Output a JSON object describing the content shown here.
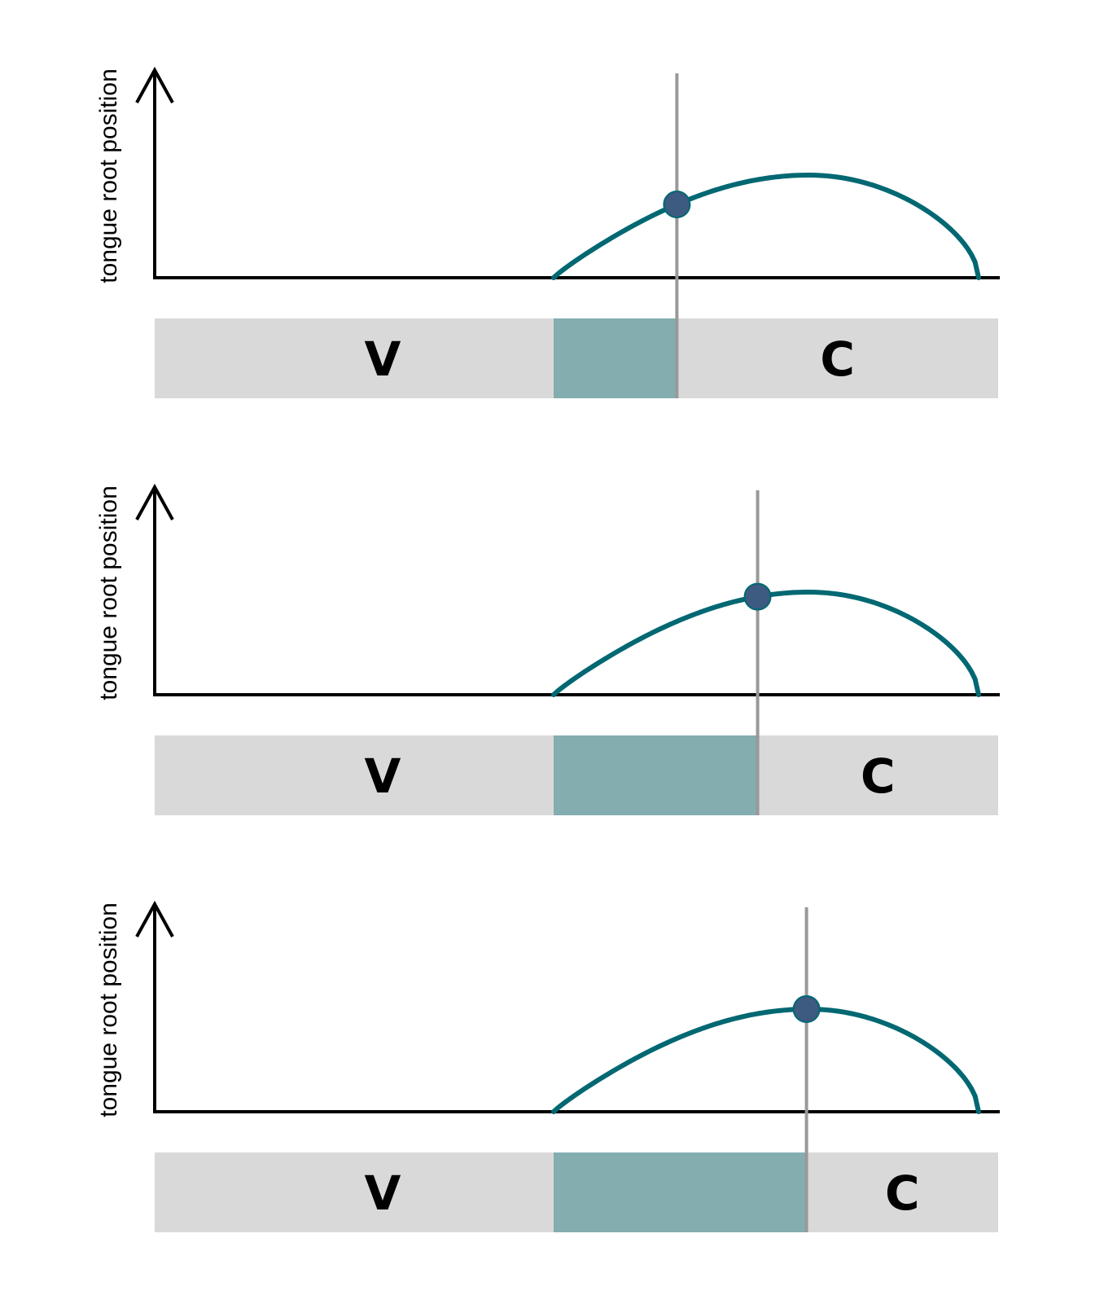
{
  "colors": {
    "curve": "#006872",
    "dot": "#3d5a80",
    "marker_line": "#999999",
    "axis": "#000000",
    "segment_bar": "#d9d9d9",
    "overlap_fill": "#84adb0"
  },
  "panels": [
    {
      "ylabel": "tongue root position",
      "vowel_label": "V",
      "consonant_label": "C",
      "marker_fraction": 0.29,
      "peak_height": 0.5
    },
    {
      "ylabel": "tongue root position",
      "vowel_label": "V",
      "consonant_label": "C",
      "marker_fraction": 0.48,
      "peak_height": 0.5
    },
    {
      "ylabel": "tongue root position",
      "vowel_label": "V",
      "consonant_label": "C",
      "marker_fraction": 0.595,
      "peak_height": 0.5
    }
  ]
}
